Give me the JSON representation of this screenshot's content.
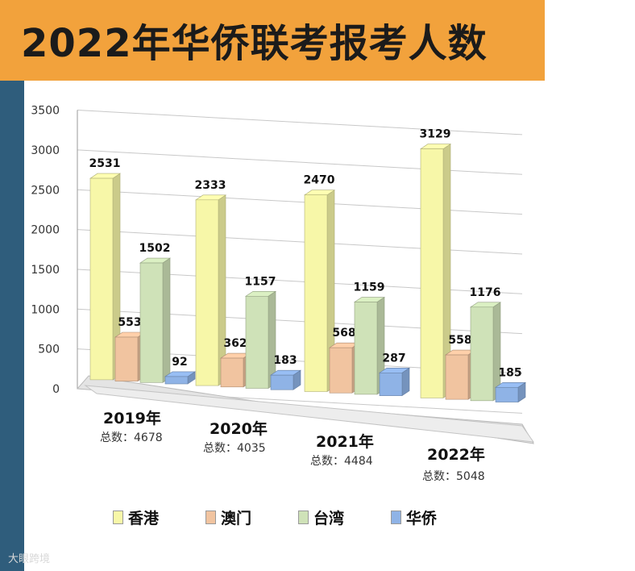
{
  "title": "2022年华侨联考报考人数",
  "chart_data": {
    "type": "bar",
    "title": "2022年华侨联考报考人数",
    "categories": [
      "2019年",
      "2020年",
      "2021年",
      "2022年"
    ],
    "totals": [
      "总数：4678",
      "总数：4035",
      "总数：4484",
      "总数：5048"
    ],
    "series": [
      {
        "name": "香港",
        "values": [
          2531,
          2333,
          2470,
          3129
        ],
        "color": "#f7f7a8"
      },
      {
        "name": "澳门",
        "values": [
          553,
          362,
          568,
          558
        ],
        "color": "#f1c4a0"
      },
      {
        "name": "台湾",
        "values": [
          1502,
          1157,
          1159,
          1176
        ],
        "color": "#cfe2b8"
      },
      {
        "name": "华侨",
        "values": [
          92,
          183,
          287,
          185
        ],
        "color": "#8fb3e6"
      }
    ],
    "ylim": [
      0,
      3500
    ],
    "yticks": [
      0,
      500,
      1000,
      1500,
      2000,
      2500,
      3000,
      3500
    ],
    "grid": true,
    "legend": "bottom"
  },
  "watermark": "大眼跨境"
}
